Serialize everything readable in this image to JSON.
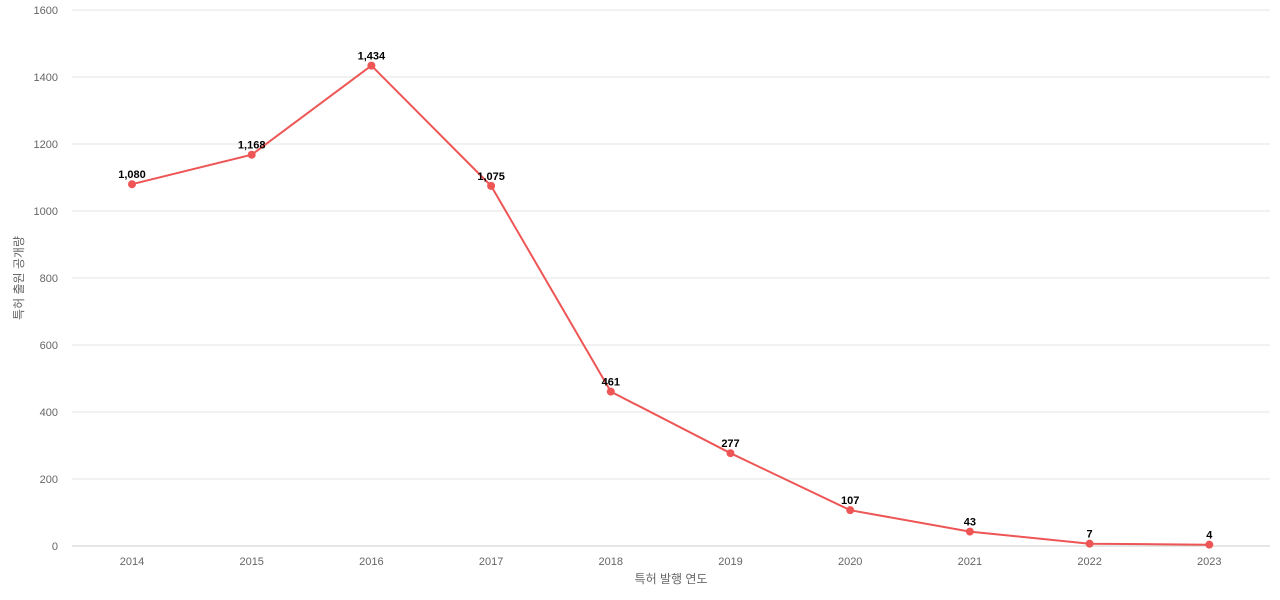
{
  "chart_data": {
    "type": "line",
    "xlabel": "특허 발행 연도",
    "ylabel": "특허 출원 공개량",
    "categories": [
      "2014",
      "2015",
      "2016",
      "2017",
      "2018",
      "2019",
      "2020",
      "2021",
      "2022",
      "2023"
    ],
    "series": [
      {
        "values": [
          1080,
          1168,
          1434,
          1075,
          461,
          277,
          107,
          43,
          7,
          4
        ],
        "labels": [
          "1,080",
          "1,168",
          "1,434",
          "1,075",
          "461",
          "277",
          "107",
          "43",
          "7",
          "4"
        ]
      }
    ],
    "ylim": [
      0,
      1600
    ],
    "yticks": [
      "0",
      "200",
      "400",
      "600",
      "800",
      "1000",
      "1200",
      "1400",
      "1600"
    ],
    "grid": true,
    "legend": "none",
    "colors": {
      "line": "#ee5555",
      "grid": "#e6e6e6",
      "axis": "#cccccc"
    }
  }
}
